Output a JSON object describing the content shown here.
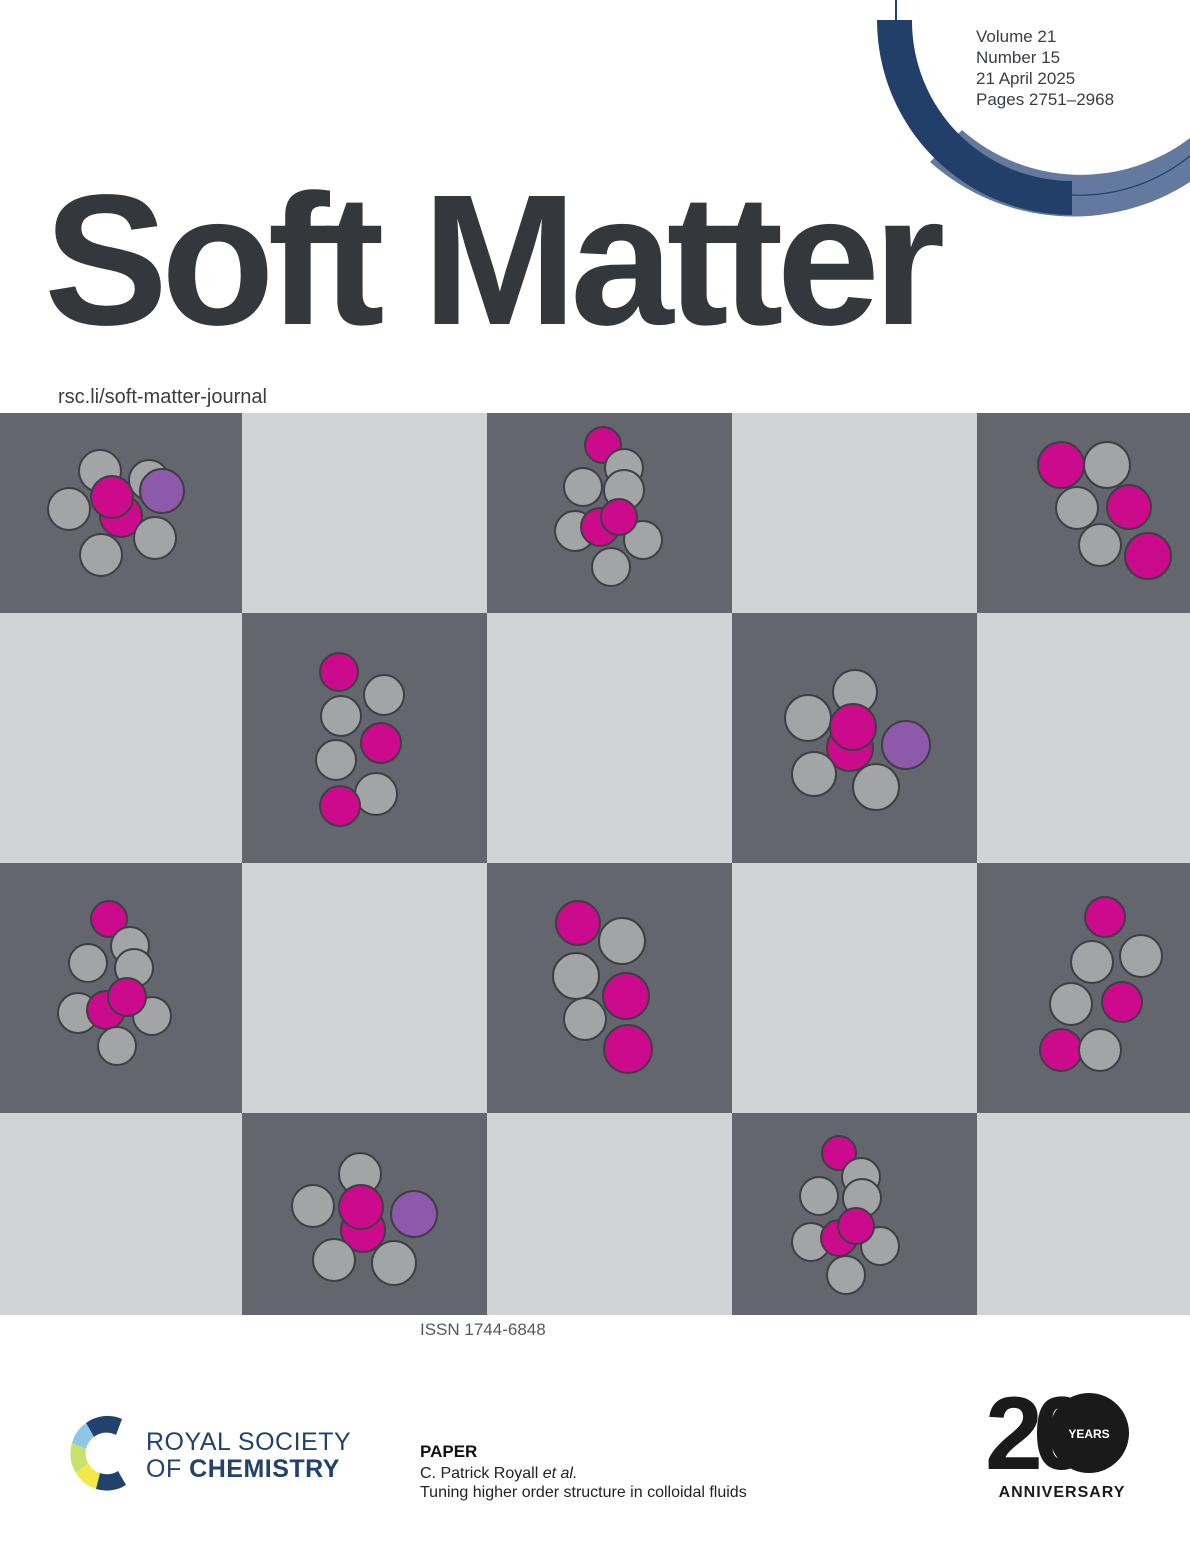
{
  "issue": {
    "volume": "Volume 21",
    "number": "Number 15",
    "date": "21 April 2025",
    "pages": "Pages 2751–2968"
  },
  "journal": {
    "title": "Soft Matter",
    "url": "rsc.li/soft-matter-journal",
    "issn": "ISSN 1744-6848"
  },
  "publisher": {
    "line1": "ROYAL SOCIETY",
    "line2_prefix": "OF ",
    "line2_bold": "CHEMISTRY"
  },
  "paper": {
    "label": "PAPER",
    "authors": "C. Patrick Royall",
    "authors_suffix": "et al.",
    "title": "Tuning higher order structure in colloidal fluids"
  },
  "anniversary": {
    "number": "20",
    "years": "YEARS",
    "word": "ANNIVERSARY"
  },
  "colors": {
    "dark_tile": "#63666d",
    "light_tile": "#d1d2d4",
    "particle_grey": "#a3a4a6",
    "particle_magenta": "#cc0a8c",
    "particle_purple": "#8c5aa8",
    "arc_dark": "#223f69",
    "arc_light": "#637a9e",
    "title": "#34373c"
  }
}
